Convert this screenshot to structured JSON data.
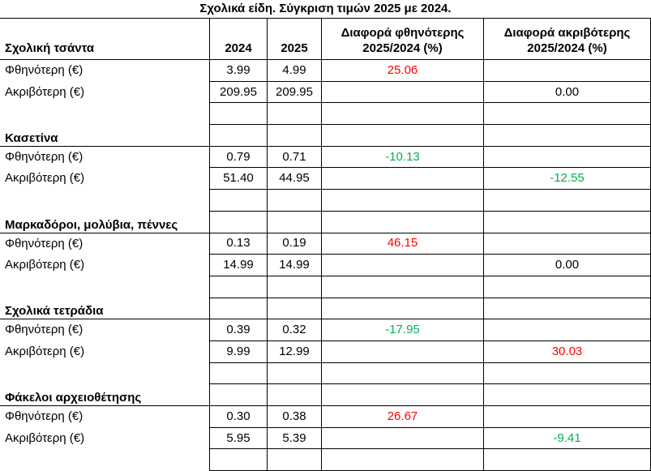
{
  "title": "Σχολικά είδη. Σύγκριση τιμών 2025 με 2024.",
  "colors": {
    "increase": "#ff0000",
    "decrease": "#00b050"
  },
  "headers": {
    "item": "Σχολική τσάντα",
    "y2024": "2024",
    "y2025": "2025",
    "diff_cheapest": "Διαφορά φθηνότερης 2025/2024 (%)",
    "diff_expensive": "Διαφορά ακριβότερης 2025/2024 (%)"
  },
  "sections": [
    {
      "category": "Σχολική τσάντα",
      "rows": [
        {
          "label": "Φθηνότερη (€)",
          "y2024": "3.99",
          "y2025": "4.99",
          "diff_cheapest": "25.06",
          "diff_expensive": ""
        },
        {
          "label": "Ακριβότερη (€)",
          "y2024": "209.95",
          "y2025": "209.95",
          "diff_cheapest": "",
          "diff_expensive": "0.00"
        }
      ]
    },
    {
      "category": "Κασετίνα",
      "rows": [
        {
          "label": "Φθηνότερη (€)",
          "y2024": "0.79",
          "y2025": "0.71",
          "diff_cheapest": "-10.13",
          "diff_expensive": ""
        },
        {
          "label": "Ακριβότερη (€)",
          "y2024": "51.40",
          "y2025": "44.95",
          "diff_cheapest": "",
          "diff_expensive": "-12.55"
        }
      ]
    },
    {
      "category": "Μαρκαδόροι, μολύβια, πέννες",
      "rows": [
        {
          "label": "Φθηνότερη (€)",
          "y2024": "0.13",
          "y2025": "0.19",
          "diff_cheapest": "46.15",
          "diff_expensive": ""
        },
        {
          "label": "Ακριβότερη (€)",
          "y2024": "14.99",
          "y2025": "14.99",
          "diff_cheapest": "",
          "diff_expensive": "0.00"
        }
      ]
    },
    {
      "category": "Σχολικά τετράδια",
      "rows": [
        {
          "label": "Φθηνότερη (€)",
          "y2024": "0.39",
          "y2025": "0.32",
          "diff_cheapest": "-17.95",
          "diff_expensive": ""
        },
        {
          "label": "Ακριβότερη (€)",
          "y2024": "9.99",
          "y2025": "12.99",
          "diff_cheapest": "",
          "diff_expensive": "30.03"
        }
      ]
    },
    {
      "category": "Φάκελοι αρχειοθέτησης",
      "rows": [
        {
          "label": "Φθηνότερη (€)",
          "y2024": "0.30",
          "y2025": "0.38",
          "diff_cheapest": "26.67",
          "diff_expensive": ""
        },
        {
          "label": "Ακριβότερη (€)",
          "y2024": "5.95",
          "y2025": "5.39",
          "diff_cheapest": "",
          "diff_expensive": "-9.41"
        }
      ]
    }
  ]
}
